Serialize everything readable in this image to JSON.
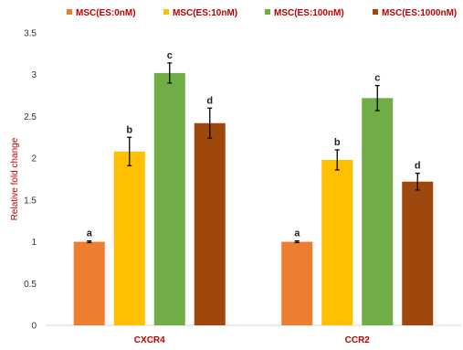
{
  "chart_data": {
    "type": "bar",
    "title": "",
    "xlabel": "",
    "ylabel": "Relative fold change",
    "ylim": [
      0,
      3.5
    ],
    "yticks": [
      "0",
      "0.5",
      "1",
      "1.5",
      "2",
      "2.5",
      "3",
      "3.5"
    ],
    "grid": false,
    "legend_position": "top",
    "categories": [
      "CXCR4",
      "CCR2"
    ],
    "series": [
      {
        "name": "MSC(ES:0nM)",
        "color": "#ed7d31",
        "values": [
          1.0,
          1.0
        ],
        "errors": [
          0.01,
          0.01
        ],
        "labels": [
          "a",
          "a"
        ]
      },
      {
        "name": "MSC(ES:10nM)",
        "color": "#ffc000",
        "values": [
          2.08,
          1.98
        ],
        "errors": [
          0.17,
          0.12
        ],
        "labels": [
          "b",
          "b"
        ]
      },
      {
        "name": "MSC(ES:100nM)",
        "color": "#70ad47",
        "values": [
          3.02,
          2.72
        ],
        "errors": [
          0.12,
          0.15
        ],
        "labels": [
          "c",
          "c"
        ]
      },
      {
        "name": "MSC(ES:1000nM)",
        "color": "#9e480e",
        "values": [
          2.42,
          1.72
        ],
        "errors": [
          0.18,
          0.1
        ],
        "labels": [
          "d",
          "d"
        ]
      }
    ],
    "text_color": "#c00000"
  }
}
